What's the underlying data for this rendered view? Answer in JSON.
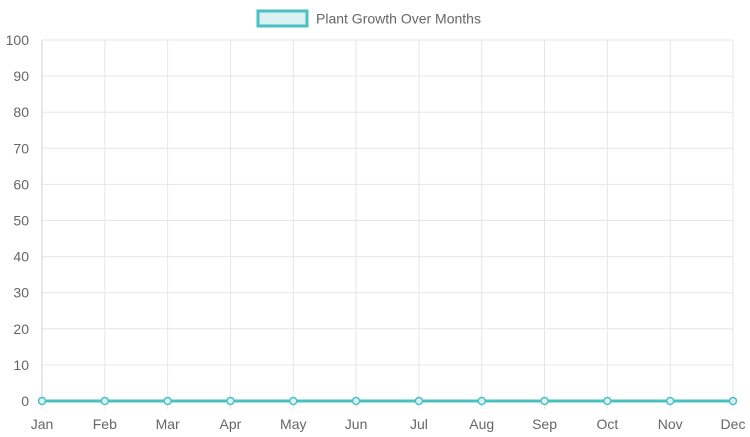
{
  "chart_data": {
    "type": "line",
    "categories": [
      "Jan",
      "Feb",
      "Mar",
      "Apr",
      "May",
      "Jun",
      "Jul",
      "Aug",
      "Sep",
      "Oct",
      "Nov",
      "Dec"
    ],
    "series": [
      {
        "name": "Plant Growth Over Months",
        "values": [
          0,
          0,
          0,
          0,
          0,
          0,
          0,
          0,
          0,
          0,
          0,
          0
        ]
      }
    ],
    "ylim": [
      0,
      100
    ],
    "yticks": [
      0,
      10,
      20,
      30,
      40,
      50,
      60,
      70,
      80,
      90,
      100
    ],
    "grid": true,
    "legend_position": "top-center",
    "colors": {
      "line": "#4bc0c0",
      "fill": "#dbf2f2",
      "grid": "#e6e6e6",
      "tick_text": "#666666"
    }
  }
}
